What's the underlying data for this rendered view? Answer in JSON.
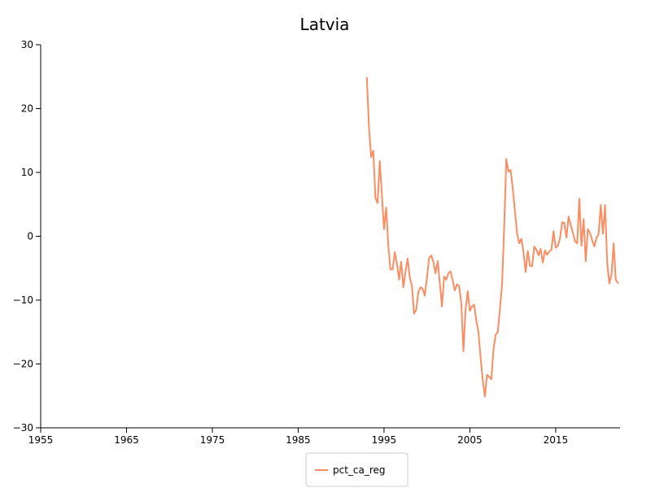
{
  "chart_data": {
    "type": "line",
    "title": "Latvia",
    "xlabel": "",
    "ylabel": "",
    "xlim": [
      1955,
      2022.5
    ],
    "ylim": [
      -30,
      30
    ],
    "x_ticks": [
      1955,
      1965,
      1975,
      1985,
      1995,
      2005,
      2015
    ],
    "y_ticks": [
      30,
      20,
      10,
      0,
      -10,
      -20,
      -30
    ],
    "grid": false,
    "legend_position": "bottom-center",
    "series": [
      {
        "name": "pct_ca_reg",
        "color": "#fc8d62",
        "points": [
          [
            1993.0,
            24.8
          ],
          [
            1993.25,
            17.0
          ],
          [
            1993.5,
            12.4
          ],
          [
            1993.75,
            13.4
          ],
          [
            1994.0,
            6.0
          ],
          [
            1994.25,
            5.2
          ],
          [
            1994.5,
            11.8
          ],
          [
            1994.75,
            6.5
          ],
          [
            1995.0,
            1.1
          ],
          [
            1995.25,
            4.5
          ],
          [
            1995.5,
            -1.5
          ],
          [
            1995.75,
            -5.2
          ],
          [
            1996.0,
            -5.2
          ],
          [
            1996.25,
            -2.5
          ],
          [
            1996.5,
            -4.2
          ],
          [
            1996.75,
            -6.8
          ],
          [
            1997.0,
            -4.0
          ],
          [
            1997.25,
            -8.0
          ],
          [
            1997.5,
            -5.5
          ],
          [
            1997.75,
            -3.5
          ],
          [
            1998.0,
            -6.5
          ],
          [
            1998.25,
            -7.8
          ],
          [
            1998.5,
            -12.1
          ],
          [
            1998.75,
            -11.5
          ],
          [
            1999.0,
            -8.7
          ],
          [
            1999.25,
            -8.0
          ],
          [
            1999.5,
            -8.2
          ],
          [
            1999.75,
            -9.3
          ],
          [
            2000.0,
            -6.5
          ],
          [
            2000.25,
            -3.4
          ],
          [
            2000.5,
            -3.0
          ],
          [
            2000.75,
            -4.0
          ],
          [
            2001.0,
            -5.8
          ],
          [
            2001.25,
            -3.9
          ],
          [
            2001.5,
            -7.3
          ],
          [
            2001.75,
            -11.0
          ],
          [
            2002.0,
            -6.3
          ],
          [
            2002.25,
            -6.8
          ],
          [
            2002.5,
            -5.8
          ],
          [
            2002.75,
            -5.5
          ],
          [
            2003.0,
            -6.9
          ],
          [
            2003.25,
            -8.5
          ],
          [
            2003.5,
            -7.5
          ],
          [
            2003.75,
            -7.8
          ],
          [
            2004.0,
            -10.5
          ],
          [
            2004.25,
            -18.0
          ],
          [
            2004.5,
            -11.5
          ],
          [
            2004.75,
            -8.6
          ],
          [
            2005.0,
            -11.7
          ],
          [
            2005.25,
            -11.0
          ],
          [
            2005.5,
            -10.7
          ],
          [
            2005.75,
            -13.2
          ],
          [
            2006.0,
            -15.0
          ],
          [
            2006.25,
            -19.0
          ],
          [
            2006.5,
            -22.5
          ],
          [
            2006.75,
            -25.1
          ],
          [
            2007.0,
            -21.7
          ],
          [
            2007.25,
            -22.0
          ],
          [
            2007.5,
            -22.4
          ],
          [
            2007.75,
            -17.8
          ],
          [
            2008.0,
            -15.4
          ],
          [
            2008.25,
            -15.0
          ],
          [
            2008.5,
            -11.5
          ],
          [
            2008.75,
            -7.5
          ],
          [
            2009.0,
            1.5
          ],
          [
            2009.25,
            12.1
          ],
          [
            2009.5,
            10.1
          ],
          [
            2009.75,
            10.4
          ],
          [
            2010.0,
            7.5
          ],
          [
            2010.25,
            4.0
          ],
          [
            2010.5,
            0.5
          ],
          [
            2010.75,
            -1.1
          ],
          [
            2011.0,
            -0.4
          ],
          [
            2011.25,
            -2.5
          ],
          [
            2011.5,
            -5.6
          ],
          [
            2011.75,
            -2.3
          ],
          [
            2012.0,
            -4.6
          ],
          [
            2012.25,
            -4.7
          ],
          [
            2012.5,
            -1.6
          ],
          [
            2012.75,
            -2.1
          ],
          [
            2013.0,
            -3.0
          ],
          [
            2013.25,
            -2.0
          ],
          [
            2013.5,
            -4.1
          ],
          [
            2013.75,
            -2.2
          ],
          [
            2014.0,
            -2.9
          ],
          [
            2014.25,
            -2.4
          ],
          [
            2014.5,
            -2.1
          ],
          [
            2014.75,
            0.8
          ],
          [
            2015.0,
            -1.8
          ],
          [
            2015.25,
            -1.5
          ],
          [
            2015.5,
            -0.3
          ],
          [
            2015.75,
            2.2
          ],
          [
            2016.0,
            2.1
          ],
          [
            2016.25,
            -0.2
          ],
          [
            2016.5,
            3.1
          ],
          [
            2016.75,
            1.8
          ],
          [
            2017.0,
            0.6
          ],
          [
            2017.25,
            -0.8
          ],
          [
            2017.5,
            -1.1
          ],
          [
            2017.75,
            5.9
          ],
          [
            2018.0,
            -1.5
          ],
          [
            2018.25,
            2.7
          ],
          [
            2018.5,
            -3.9
          ],
          [
            2018.75,
            1.1
          ],
          [
            2019.0,
            0.5
          ],
          [
            2019.25,
            -0.6
          ],
          [
            2019.5,
            -1.6
          ],
          [
            2019.75,
            -0.2
          ],
          [
            2020.0,
            0.3
          ],
          [
            2020.25,
            4.9
          ],
          [
            2020.5,
            0.4
          ],
          [
            2020.75,
            4.9
          ],
          [
            2021.0,
            -4.2
          ],
          [
            2021.25,
            -7.4
          ],
          [
            2021.5,
            -6.0
          ],
          [
            2021.75,
            -1.1
          ],
          [
            2022.0,
            -6.8
          ],
          [
            2022.25,
            -7.3
          ]
        ]
      }
    ]
  }
}
